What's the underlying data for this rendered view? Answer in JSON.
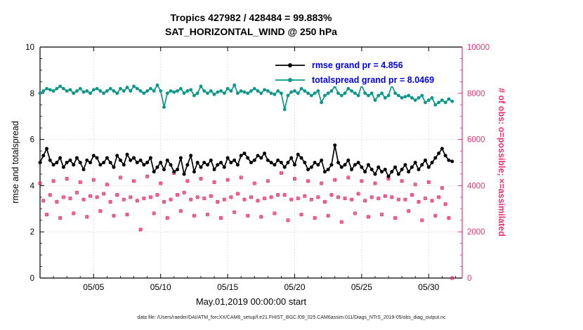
{
  "footer": {
    "data_file_note": "data file: /Users/raeder/DAI/ATM_forcXX/CAM6_setup/f.e21.FHIST_BGC.f09_025.CAM6assim.011/Diags_NTrS_2019-05/obs_diag_output.nc"
  },
  "chart_data": {
    "type": "line",
    "title": "Tropics 427982 / 428484 = 99.883%",
    "subtitle": "SAT_HORIZONTAL_WIND @ 250 hPa",
    "xlabel": "May.01,2019 00:00:00 start",
    "ylabel_left": "rmse and totalspread",
    "ylabel_right": "# of obs: o=possible; ×=assimilated",
    "ylim_left": [
      0,
      10
    ],
    "ylim_right": [
      0,
      10000
    ],
    "xlim_days": [
      0,
      31.5
    ],
    "grid": true,
    "legend_position": "top-center-inside",
    "xticks": [
      {
        "day": 4,
        "label": "05/05"
      },
      {
        "day": 9,
        "label": "05/10"
      },
      {
        "day": 14,
        "label": "05/15"
      },
      {
        "day": 19,
        "label": "05/20"
      },
      {
        "day": 24,
        "label": "05/25"
      },
      {
        "day": 29,
        "label": "05/30"
      }
    ],
    "yticks_left": [
      0,
      2,
      4,
      6,
      8,
      10
    ],
    "yticks_right": [
      0,
      2000,
      4000,
      6000,
      8000,
      10000
    ],
    "colors": {
      "rmse": "#000000",
      "totalspread": "#0a9688",
      "obs": "#e8336d",
      "legend_text": "#0000ee",
      "grid": "#d9d9d9"
    },
    "legend": [
      {
        "label": "rmse grand pr = 4.856",
        "series": "rmse"
      },
      {
        "label": "totalspread grand pr = 8.0469",
        "series": "totalspread"
      }
    ],
    "x_step_days": 0.25,
    "obs_note": "assimilated counts nearly equal possible counts (99.883% assimilated); o and × markers overlap",
    "series": {
      "rmse": [
        5.0,
        5.3,
        5.6,
        5.1,
        4.9,
        5.0,
        5.2,
        4.8,
        5.0,
        5.1,
        4.9,
        5.2,
        5.0,
        4.7,
        5.1,
        5.0,
        5.3,
        5.2,
        4.9,
        5.0,
        5.2,
        5.0,
        4.8,
        5.3,
        5.1,
        4.9,
        5.35,
        5.1,
        5.2,
        5.0,
        5.1,
        4.9,
        5.0,
        5.2,
        4.6,
        4.8,
        5.0,
        4.7,
        5.1,
        4.9,
        4.6,
        4.7,
        5.2,
        4.5,
        4.9,
        5.3,
        4.6,
        5.0,
        4.8,
        5.0,
        4.9,
        5.1,
        4.7,
        4.9,
        5.0,
        4.8,
        5.2,
        5.0,
        5.1,
        4.9,
        5.3,
        5.4,
        5.2,
        5.0,
        5.1,
        5.3,
        5.2,
        5.4,
        5.1,
        5.0,
        4.9,
        5.1,
        5.0,
        4.8,
        5.0,
        5.2,
        4.9,
        5.35,
        5.2,
        5.0,
        4.7,
        4.8,
        5.0,
        4.9,
        5.1,
        4.6,
        4.7,
        4.9,
        5.75,
        5.0,
        4.8,
        4.9,
        5.1,
        4.7,
        4.9,
        5.0,
        4.8,
        4.6,
        4.9,
        4.7,
        4.5,
        4.8,
        4.6,
        4.7,
        4.4,
        4.6,
        4.8,
        4.5,
        4.7,
        4.9,
        4.6,
        4.8,
        5.0,
        4.7,
        4.9,
        5.1,
        4.8,
        5.0,
        5.2,
        5.4,
        5.6,
        5.3,
        5.1,
        5.05
      ],
      "totalspread": [
        8.0,
        8.1,
        8.2,
        8.15,
        8.1,
        8.2,
        8.3,
        8.2,
        8.1,
        8.15,
        8.0,
        8.1,
        8.2,
        8.05,
        8.1,
        8.0,
        8.15,
        8.2,
        8.1,
        8.0,
        8.1,
        8.2,
        8.1,
        8.0,
        8.2,
        8.1,
        8.25,
        8.1,
        8.3,
        8.2,
        8.1,
        8.0,
        8.1,
        8.2,
        8.1,
        8.35,
        8.1,
        7.4,
        8.0,
        8.1,
        8.05,
        8.1,
        8.2,
        8.0,
        8.1,
        8.15,
        7.9,
        8.0,
        8.3,
        8.1,
        8.0,
        8.1,
        7.95,
        8.05,
        8.1,
        8.0,
        8.2,
        8.1,
        8.35,
        8.0,
        8.1,
        8.05,
        8.0,
        8.1,
        8.2,
        8.1,
        8.0,
        8.15,
        8.1,
        8.0,
        7.95,
        8.1,
        8.0,
        7.3,
        7.9,
        8.05,
        8.1,
        8.0,
        8.2,
        8.1,
        8.0,
        7.9,
        8.0,
        8.1,
        7.6,
        7.9,
        8.0,
        8.1,
        8.3,
        8.0,
        7.9,
        8.0,
        8.2,
        8.1,
        8.0,
        7.9,
        8.35,
        8.0,
        7.9,
        8.0,
        7.7,
        7.9,
        8.0,
        7.8,
        7.9,
        8.35,
        8.0,
        7.9,
        7.8,
        7.85,
        7.9,
        7.8,
        7.7,
        7.8,
        7.9,
        7.6,
        7.7,
        7.8,
        7.5,
        7.6,
        7.7,
        7.6,
        7.75,
        7.65
      ],
      "obs_possible": [
        4100,
        3350,
        2750,
        3600,
        4200,
        3300,
        2600,
        3500,
        4300,
        3450,
        2800,
        3700,
        4150,
        3400,
        2650,
        3550,
        4250,
        3500,
        2900,
        3650,
        4050,
        3300,
        2700,
        3600,
        4350,
        3400,
        2750,
        3500,
        4200,
        3350,
        2100,
        3450,
        4400,
        3500,
        2800,
        3600,
        4100,
        3300,
        2600,
        3400,
        4546,
        3600,
        2900,
        3700,
        4200,
        3400,
        2700,
        3500,
        4300,
        3450,
        2750,
        3550,
        4150,
        3300,
        2600,
        3400,
        4250,
        3500,
        2850,
        3650,
        4350,
        3400,
        2700,
        3500,
        4100,
        3350,
        2650,
        3450,
        4200,
        3500,
        2800,
        3600,
        4546,
        3600,
        2500,
        3400,
        4300,
        3450,
        2750,
        3550,
        4200,
        3400,
        2600,
        3500,
        4100,
        3300,
        2700,
        3600,
        4250,
        3500,
        2427,
        3450,
        4350,
        3400,
        2800,
        3650,
        4200,
        3350,
        2650,
        3500,
        4100,
        3450,
        2750,
        3550,
        4300,
        3500,
        2600,
        3400,
        4200,
        3400,
        2900,
        3600,
        4050,
        3300,
        2500,
        3450,
        4150,
        3350,
        2700,
        3500,
        3900,
        3200,
        2600,
        0
      ]
    }
  }
}
